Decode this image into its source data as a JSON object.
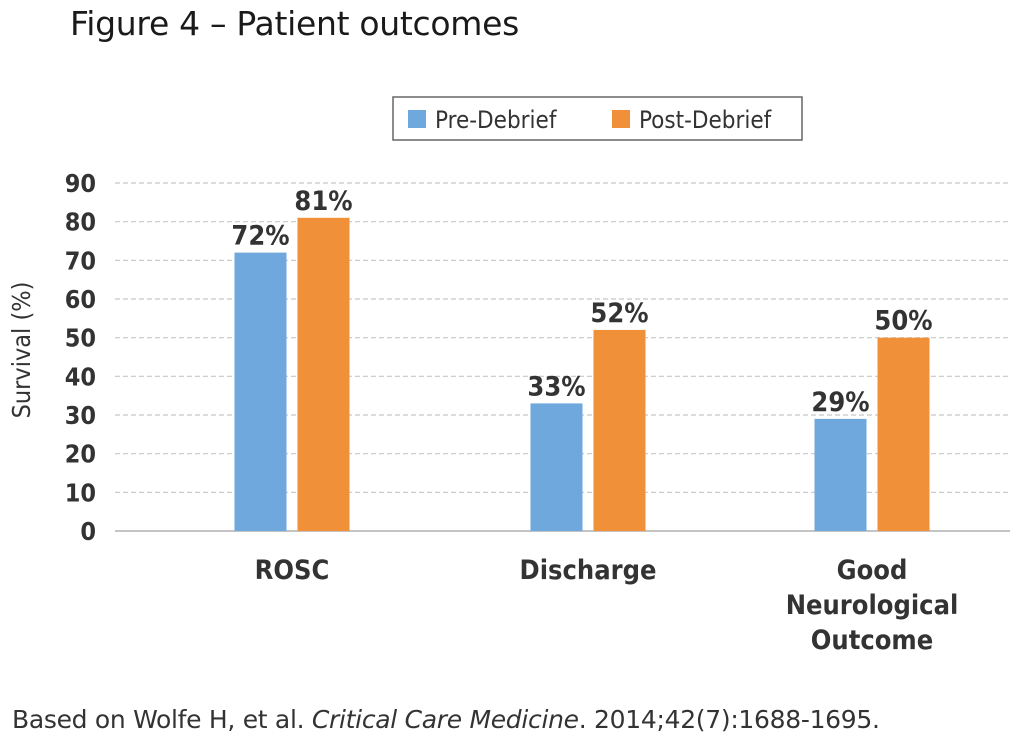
{
  "figure": {
    "title": "Figure 4 – Patient outcomes"
  },
  "citation": {
    "prefix": "Based on Wolfe H, et al. ",
    "journal": "Critical Care Medicine",
    "suffix": ". 2014;42(7):1688-1695."
  },
  "colors": {
    "pre": "#6fa8dc",
    "post": "#f0913a",
    "grid": "#c8c8c8",
    "text": "#333333"
  },
  "chart_data": {
    "type": "bar",
    "title": "",
    "xlabel": "",
    "ylabel": "Survival (%)",
    "ylim": [
      0,
      90
    ],
    "yticks": [
      0,
      10,
      20,
      30,
      40,
      50,
      60,
      70,
      80,
      90
    ],
    "grid": true,
    "legend_position": "top-right",
    "categories": [
      [
        "ROSC"
      ],
      [
        "Discharge"
      ],
      [
        "Good",
        "Neurological",
        "Outcome"
      ]
    ],
    "series": [
      {
        "name": "Pre-Debrief",
        "values": [
          72,
          33,
          29
        ],
        "labels": [
          "72%",
          "33%",
          "29%"
        ]
      },
      {
        "name": "Post-Debrief",
        "values": [
          81,
          52,
          50
        ],
        "labels": [
          "81%",
          "52%",
          "50%"
        ]
      }
    ]
  }
}
